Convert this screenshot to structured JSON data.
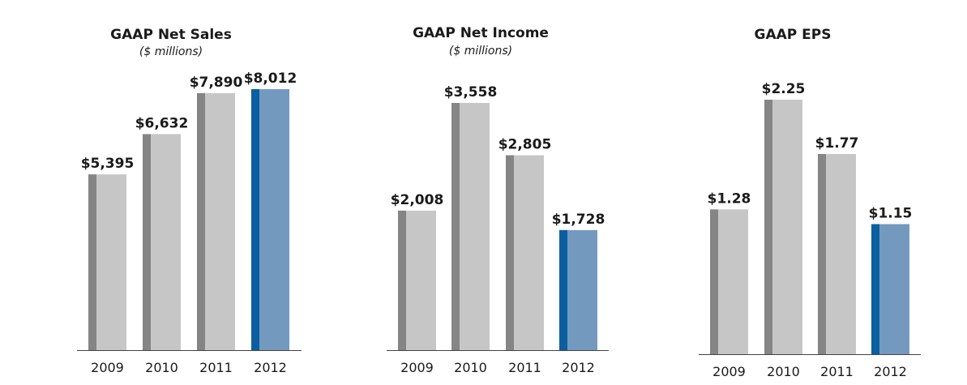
{
  "chart_data": [
    {
      "type": "bar",
      "title": "GAAP Net Sales",
      "subtitle": "($ millions)",
      "categories": [
        "2009",
        "2010",
        "2011",
        "2012"
      ],
      "values": [
        5395,
        6632,
        7890,
        8012
      ],
      "value_labels": [
        "$5,395",
        "$6,632",
        "$7,890",
        "$8,012"
      ],
      "highlight_index": 3
    },
    {
      "type": "bar",
      "title": "GAAP Net Income",
      "subtitle": "($ millions)",
      "categories": [
        "2009",
        "2010",
        "2011",
        "2012"
      ],
      "values": [
        2008,
        3558,
        2805,
        1728
      ],
      "value_labels": [
        "$2,008",
        "$3,558",
        "$2,805",
        "$1,728"
      ],
      "highlight_index": 3
    },
    {
      "type": "bar",
      "title": "GAAP EPS",
      "subtitle": "",
      "categories": [
        "2009",
        "2010",
        "2011",
        "2012"
      ],
      "values": [
        1.28,
        2.25,
        1.77,
        1.15
      ],
      "value_labels": [
        "$1.28",
        "$2.25",
        "$1.77",
        "$1.15"
      ],
      "highlight_index": 3
    }
  ],
  "colors": {
    "bar_face": "#c6c6c6",
    "bar_edge": "#858585",
    "highlight_face": "#7399bf",
    "highlight_edge": "#0b5fa0",
    "axis": "#444444"
  }
}
